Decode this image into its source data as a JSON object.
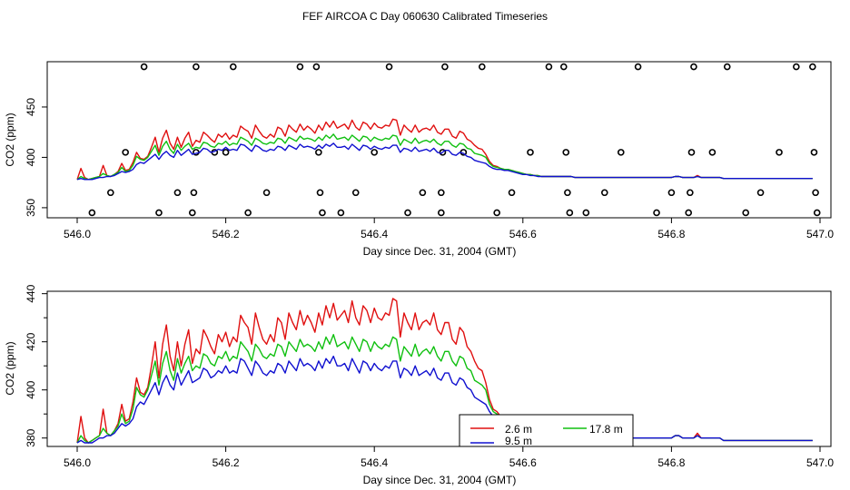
{
  "page_title": "FEF AIRCOA C  Day 060630  Calibrated Timeseries",
  "colors": {
    "red": "#e01010",
    "green": "#10c010",
    "blue": "#1010d0"
  },
  "chart_data": [
    {
      "type": "line",
      "xlabel": "Day since Dec. 31, 2004 (GMT)",
      "ylabel": "CO2 (ppm)",
      "xlim": [
        546.0,
        547.0
      ],
      "ylim": [
        340,
        495
      ],
      "xticks": [
        546.0,
        546.2,
        546.4,
        546.6,
        546.8,
        547.0
      ],
      "xtick_labels": [
        "546.0",
        "546.2",
        "546.4",
        "546.6",
        "546.8",
        "547.0"
      ],
      "yticks": [
        350,
        400,
        450
      ],
      "ytick_labels": [
        "350",
        "400",
        "450"
      ],
      "marker_points": [
        {
          "x": 546.02,
          "y": 345
        },
        {
          "x": 546.045,
          "y": 365
        },
        {
          "x": 546.065,
          "y": 405
        },
        {
          "x": 546.09,
          "y": 490
        },
        {
          "x": 546.11,
          "y": 345
        },
        {
          "x": 546.135,
          "y": 365
        },
        {
          "x": 546.155,
          "y": 345
        },
        {
          "x": 546.157,
          "y": 365
        },
        {
          "x": 546.16,
          "y": 490
        },
        {
          "x": 546.16,
          "y": 405
        },
        {
          "x": 546.185,
          "y": 405
        },
        {
          "x": 546.2,
          "y": 405
        },
        {
          "x": 546.21,
          "y": 490
        },
        {
          "x": 546.23,
          "y": 345
        },
        {
          "x": 546.255,
          "y": 365
        },
        {
          "x": 546.3,
          "y": 490
        },
        {
          "x": 546.322,
          "y": 490
        },
        {
          "x": 546.325,
          "y": 405
        },
        {
          "x": 546.327,
          "y": 365
        },
        {
          "x": 546.33,
          "y": 345
        },
        {
          "x": 546.355,
          "y": 345
        },
        {
          "x": 546.375,
          "y": 365
        },
        {
          "x": 546.4,
          "y": 405
        },
        {
          "x": 546.42,
          "y": 490
        },
        {
          "x": 546.445,
          "y": 345
        },
        {
          "x": 546.465,
          "y": 365
        },
        {
          "x": 546.49,
          "y": 345
        },
        {
          "x": 546.49,
          "y": 365
        },
        {
          "x": 546.492,
          "y": 405
        },
        {
          "x": 546.495,
          "y": 490
        },
        {
          "x": 546.52,
          "y": 405
        },
        {
          "x": 546.545,
          "y": 490
        },
        {
          "x": 546.565,
          "y": 345
        },
        {
          "x": 546.585,
          "y": 365
        },
        {
          "x": 546.61,
          "y": 405
        },
        {
          "x": 546.635,
          "y": 490
        },
        {
          "x": 546.655,
          "y": 490
        },
        {
          "x": 546.658,
          "y": 405
        },
        {
          "x": 546.66,
          "y": 365
        },
        {
          "x": 546.663,
          "y": 345
        },
        {
          "x": 546.685,
          "y": 345
        },
        {
          "x": 546.71,
          "y": 365
        },
        {
          "x": 546.732,
          "y": 405
        },
        {
          "x": 546.755,
          "y": 490
        },
        {
          "x": 546.78,
          "y": 345
        },
        {
          "x": 546.8,
          "y": 365
        },
        {
          "x": 546.823,
          "y": 345
        },
        {
          "x": 546.825,
          "y": 365
        },
        {
          "x": 546.827,
          "y": 405
        },
        {
          "x": 546.83,
          "y": 490
        },
        {
          "x": 546.855,
          "y": 405
        },
        {
          "x": 546.875,
          "y": 490
        },
        {
          "x": 546.9,
          "y": 345
        },
        {
          "x": 546.92,
          "y": 365
        },
        {
          "x": 546.945,
          "y": 405
        },
        {
          "x": 546.968,
          "y": 490
        },
        {
          "x": 546.99,
          "y": 490
        },
        {
          "x": 546.992,
          "y": 405
        },
        {
          "x": 546.994,
          "y": 365
        },
        {
          "x": 546.996,
          "y": 345
        }
      ]
    },
    {
      "type": "line",
      "xlabel": "Day since Dec. 31, 2004 (GMT)",
      "ylabel": "CO2 (ppm)",
      "xlim": [
        546.0,
        547.0
      ],
      "ylim": [
        376.5,
        441
      ],
      "xticks": [
        546.0,
        546.2,
        546.4,
        546.6,
        546.8,
        547.0
      ],
      "xtick_labels": [
        "546.0",
        "546.2",
        "546.4",
        "546.6",
        "546.8",
        "547.0"
      ],
      "yticks": [
        380,
        400,
        420,
        440
      ],
      "ytick_labels": [
        "380",
        "400",
        "420",
        "440"
      ],
      "legend": {
        "entries": [
          {
            "label": "2.6 m",
            "color": "#e01010"
          },
          {
            "label": "17.8 m",
            "color": "#10c010"
          },
          {
            "label": "9.5 m",
            "color": "#1010d0"
          }
        ]
      }
    }
  ],
  "series": {
    "x_start": 546.0,
    "x_step": 0.005,
    "red": [
      378,
      389,
      380,
      378,
      379,
      380,
      381,
      392,
      382,
      381,
      383,
      386,
      394,
      387,
      388,
      395,
      405,
      399,
      398,
      401,
      410,
      420,
      405,
      419,
      427,
      414,
      408,
      420,
      410,
      419,
      425,
      411,
      417,
      415,
      425,
      422,
      418,
      415,
      423,
      420,
      424,
      418,
      422,
      420,
      431,
      428,
      426,
      419,
      432,
      426,
      421,
      419,
      423,
      420,
      430,
      428,
      421,
      432,
      428,
      425,
      433,
      427,
      431,
      428,
      424,
      432,
      427,
      435,
      430,
      436,
      429,
      431,
      433,
      428,
      437,
      430,
      427,
      435,
      433,
      428,
      434,
      430,
      429,
      432,
      431,
      438,
      437,
      422,
      432,
      428,
      425,
      432,
      425,
      428,
      429,
      427,
      432,
      425,
      423,
      428,
      428,
      421,
      419,
      426,
      424,
      418,
      416,
      412,
      409,
      408,
      403,
      396,
      392,
      391,
      389,
      388,
      388,
      387,
      386,
      385,
      384,
      383,
      383,
      382,
      382,
      381,
      381,
      381,
      381,
      381,
      381,
      381,
      381,
      381,
      380,
      380,
      380,
      380,
      380,
      380,
      380,
      380,
      380,
      380,
      380,
      380,
      380,
      380,
      380,
      380,
      380,
      380,
      380,
      380,
      380,
      380,
      380,
      380,
      380,
      380,
      380,
      381,
      381,
      380,
      380,
      380,
      380,
      382,
      380,
      380,
      380,
      380,
      380,
      380,
      379,
      379,
      379,
      379,
      379,
      379,
      379,
      379,
      379,
      379,
      379,
      379,
      379,
      379,
      379,
      379,
      379,
      379,
      379,
      379,
      379,
      379,
      379,
      379,
      379
    ],
    "green": [
      378,
      381,
      379,
      378,
      379,
      380,
      381,
      384,
      382,
      381,
      383,
      385,
      390,
      386,
      387,
      392,
      401,
      398,
      397,
      400,
      406,
      412,
      402,
      411,
      416,
      408,
      404,
      413,
      407,
      411,
      414,
      408,
      410,
      409,
      415,
      414,
      411,
      410,
      414,
      413,
      416,
      412,
      414,
      413,
      420,
      418,
      416,
      412,
      419,
      417,
      414,
      413,
      415,
      414,
      419,
      418,
      414,
      420,
      418,
      416,
      421,
      418,
      419,
      418,
      416,
      420,
      417,
      422,
      419,
      423,
      418,
      419,
      420,
      417,
      422,
      419,
      416,
      421,
      420,
      416,
      420,
      418,
      417,
      419,
      418,
      422,
      421,
      412,
      418,
      416,
      414,
      419,
      414,
      416,
      417,
      415,
      418,
      414,
      412,
      416,
      416,
      412,
      410,
      414,
      413,
      409,
      408,
      404,
      403,
      402,
      400,
      394,
      391,
      390,
      389,
      388,
      388,
      387,
      386,
      385,
      384,
      383,
      383,
      382,
      382,
      381,
      381,
      381,
      381,
      381,
      381,
      381,
      381,
      381,
      380,
      380,
      380,
      380,
      380,
      380,
      380,
      380,
      380,
      380,
      380,
      380,
      380,
      380,
      380,
      380,
      380,
      380,
      380,
      380,
      380,
      380,
      380,
      380,
      380,
      380,
      380,
      381,
      381,
      380,
      380,
      380,
      380,
      381,
      380,
      380,
      380,
      380,
      380,
      380,
      379,
      379,
      379,
      379,
      379,
      379,
      379,
      379,
      379,
      379,
      379,
      379,
      379,
      379,
      379,
      379,
      379,
      379,
      379,
      379,
      379,
      379,
      379,
      379,
      379
    ],
    "blue": [
      378,
      379,
      378,
      378,
      378,
      379,
      380,
      380,
      381,
      381,
      382,
      384,
      386,
      385,
      386,
      388,
      393,
      395,
      394,
      397,
      400,
      403,
      398,
      403,
      406,
      402,
      400,
      407,
      402,
      405,
      408,
      403,
      404,
      405,
      409,
      408,
      405,
      406,
      408,
      407,
      410,
      407,
      408,
      407,
      413,
      412,
      409,
      406,
      412,
      410,
      407,
      406,
      408,
      407,
      411,
      410,
      407,
      412,
      410,
      408,
      413,
      410,
      411,
      410,
      408,
      412,
      409,
      413,
      411,
      414,
      410,
      410,
      411,
      408,
      413,
      410,
      407,
      412,
      411,
      408,
      411,
      409,
      408,
      410,
      409,
      412,
      412,
      405,
      409,
      408,
      406,
      410,
      406,
      407,
      408,
      406,
      409,
      405,
      404,
      407,
      407,
      403,
      402,
      405,
      404,
      401,
      400,
      397,
      396,
      395,
      394,
      391,
      389,
      388,
      388,
      387,
      387,
      386,
      385,
      384,
      383,
      383,
      382,
      382,
      381,
      381,
      381,
      381,
      381,
      381,
      381,
      381,
      381,
      381,
      380,
      380,
      380,
      380,
      380,
      380,
      380,
      380,
      380,
      380,
      380,
      380,
      380,
      380,
      380,
      380,
      380,
      380,
      380,
      380,
      380,
      380,
      380,
      380,
      380,
      380,
      380,
      381,
      381,
      380,
      380,
      380,
      380,
      381,
      380,
      380,
      380,
      380,
      380,
      380,
      379,
      379,
      379,
      379,
      379,
      379,
      379,
      379,
      379,
      379,
      379,
      379,
      379,
      379,
      379,
      379,
      379,
      379,
      379,
      379,
      379,
      379,
      379,
      379,
      379
    ]
  }
}
